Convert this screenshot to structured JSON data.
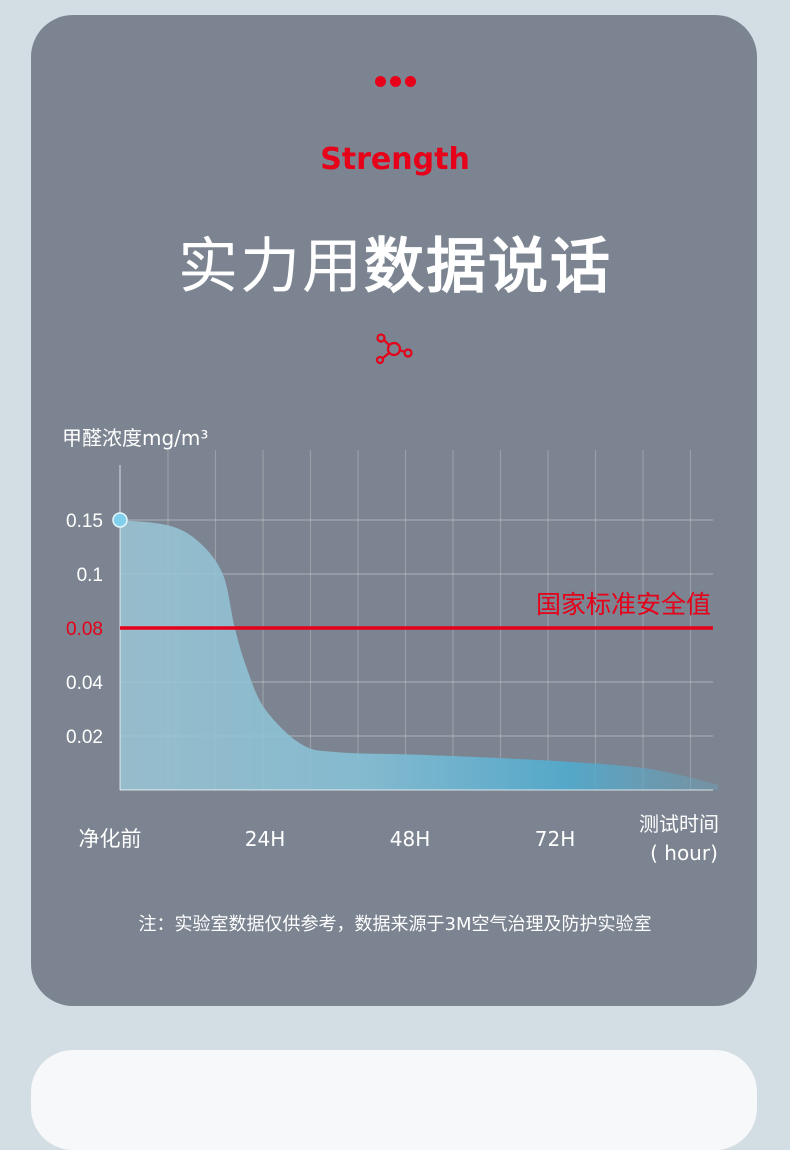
{
  "header": {
    "kicker": "Strength",
    "title_light": "实力用",
    "title_bold": "数据说话",
    "dots_icon": "three-dots-icon",
    "molecule_icon": "molecule-icon"
  },
  "colors": {
    "accent": "#e60019",
    "card": "#7b8490",
    "fill": "#6fb8d3",
    "background": "#d2dde4"
  },
  "chart_data": {
    "type": "area",
    "ylabel": "甲醛浓度mg/m³",
    "xlabel": "测试时间",
    "xlabel_unit": "( hour)",
    "yticks": [
      0.02,
      0.04,
      0.08,
      0.1,
      0.15
    ],
    "ytick_labels": [
      "0.02",
      "0.04",
      "0.08",
      "0.1",
      "0.15"
    ],
    "xticks": [
      0,
      24,
      48,
      72
    ],
    "xtick_labels": [
      "净化前",
      "24H",
      "48H",
      "72H"
    ],
    "x": [
      0,
      8,
      13,
      17,
      19,
      21,
      24,
      30,
      36,
      50,
      70,
      87,
      99
    ],
    "y": [
      0.15,
      0.145,
      0.13,
      0.1,
      0.08,
      0.05,
      0.03,
      0.017,
      0.014,
      0.013,
      0.011,
      0.008,
      0.002
    ],
    "reference_line": {
      "value": 0.08,
      "label": "国家标准安全值",
      "color": "#e60019"
    },
    "grid": true
  },
  "footer": {
    "note": "注：实验室数据仅供参考，数据来源于3M空气治理及防护实验室"
  }
}
